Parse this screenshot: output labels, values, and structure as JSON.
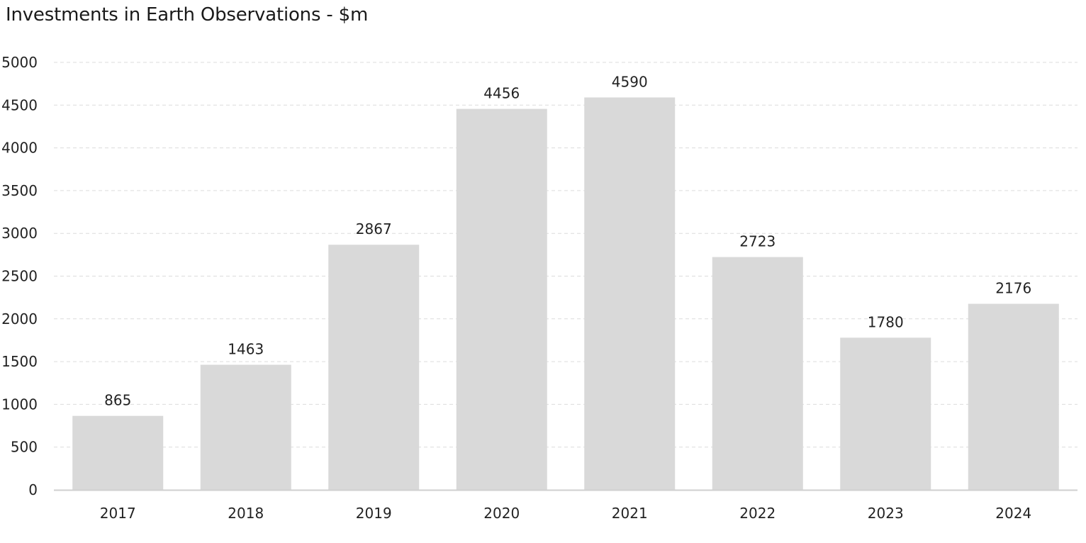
{
  "chart_data": {
    "type": "bar",
    "title": "Investments in Earth Observations - $m",
    "categories": [
      "2017",
      "2018",
      "2019",
      "2020",
      "2021",
      "2022",
      "2023",
      "2024"
    ],
    "values": [
      865,
      1463,
      2867,
      4456,
      4590,
      2723,
      1780,
      2176
    ],
    "data_labels": [
      "865",
      "1463",
      "2867",
      "4456",
      "4590",
      "2723",
      "1780",
      "2176"
    ],
    "y_ticks": [
      "0",
      "500",
      "1000",
      "1500",
      "2000",
      "2500",
      "3000",
      "3500",
      "4000",
      "4500",
      "5000"
    ],
    "ylim": [
      0,
      5000
    ],
    "grid": true,
    "legend": "none",
    "colors": {
      "bar": "#d9d9d9",
      "grid": "#dcdcdc",
      "axis": "#cfcfcf",
      "text": "#222222"
    }
  }
}
